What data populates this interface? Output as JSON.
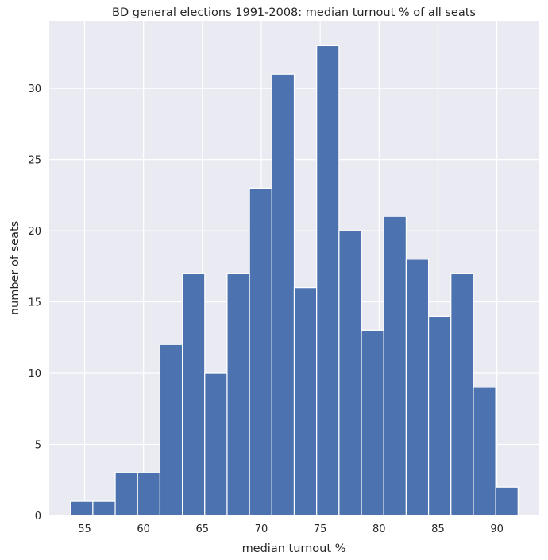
{
  "chart_data": {
    "type": "bar",
    "title": "BD general elections 1991-2008: median turnout % of all seats",
    "xlabel": "median turnout %",
    "ylabel": "number of seats",
    "bins": [
      {
        "x0": 53.8,
        "x1": 55.7,
        "count": 1
      },
      {
        "x0": 55.7,
        "x1": 57.6,
        "count": 1
      },
      {
        "x0": 57.6,
        "x1": 59.5,
        "count": 3
      },
      {
        "x0": 59.5,
        "x1": 61.4,
        "count": 3
      },
      {
        "x0": 61.4,
        "x1": 63.3,
        "count": 12
      },
      {
        "x0": 63.3,
        "x1": 65.2,
        "count": 17
      },
      {
        "x0": 65.2,
        "x1": 67.1,
        "count": 10
      },
      {
        "x0": 67.1,
        "x1": 69.0,
        "count": 17
      },
      {
        "x0": 69.0,
        "x1": 70.9,
        "count": 23
      },
      {
        "x0": 70.9,
        "x1": 72.8,
        "count": 31
      },
      {
        "x0": 72.8,
        "x1": 74.7,
        "count": 16
      },
      {
        "x0": 74.7,
        "x1": 76.6,
        "count": 33
      },
      {
        "x0": 76.6,
        "x1": 78.5,
        "count": 20
      },
      {
        "x0": 78.5,
        "x1": 80.4,
        "count": 13
      },
      {
        "x0": 80.4,
        "x1": 82.3,
        "count": 21
      },
      {
        "x0": 82.3,
        "x1": 84.2,
        "count": 18
      },
      {
        "x0": 84.2,
        "x1": 86.1,
        "count": 14
      },
      {
        "x0": 86.1,
        "x1": 88.0,
        "count": 17
      },
      {
        "x0": 88.0,
        "x1": 89.9,
        "count": 9
      },
      {
        "x0": 89.9,
        "x1": 91.8,
        "count": 2
      }
    ],
    "xlim": [
      52.0,
      93.6
    ],
    "ylim": [
      0,
      34.7
    ],
    "xticks": [
      55,
      60,
      65,
      70,
      75,
      80,
      85,
      90
    ],
    "yticks": [
      0,
      5,
      10,
      15,
      20,
      25,
      30
    ],
    "grid": true,
    "colors": {
      "bar": "#4c72b0",
      "background": "#eaeaf2",
      "grid": "#ffffff"
    }
  }
}
